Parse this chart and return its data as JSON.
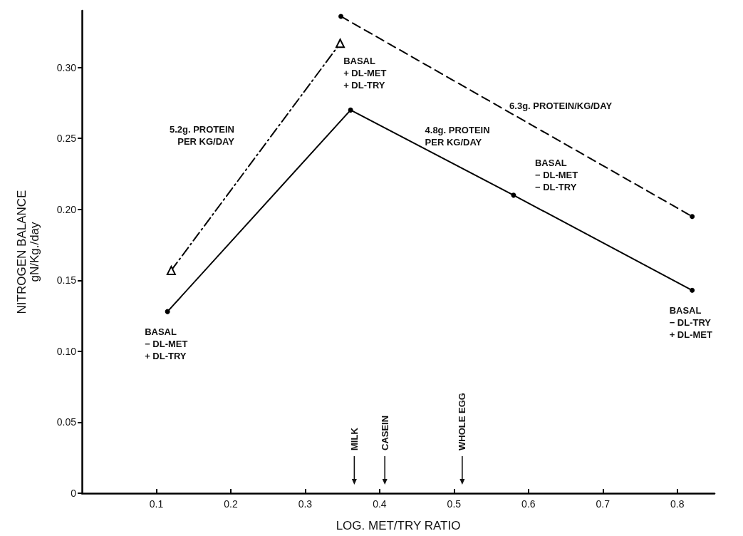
{
  "chart_data": {
    "type": "line",
    "xlabel": "LOG. MET/TRY RATIO",
    "ylabel": "NITROGEN BALANCE\ngN/Kg./day",
    "xlim": [
      0,
      0.85
    ],
    "xticks": [
      0.1,
      0.2,
      0.3,
      0.4,
      0.5,
      0.6,
      0.7,
      0.8
    ],
    "ylim": [
      0,
      0.34
    ],
    "yticks": [
      0,
      0.05,
      {
        "value": 0.1,
        "label": "0.10"
      },
      0.15,
      {
        "value": 0.2,
        "label": "0.20"
      },
      0.25,
      {
        "value": 0.3,
        "label": "0.30"
      }
    ],
    "grid": false,
    "legend": false,
    "series": [
      {
        "name": "4.8g. PROTEIN\nPER KG/DAY",
        "color": "#000000",
        "x": [
          0.115,
          0.361,
          0.58,
          0.82
        ],
        "values": [
          0.128,
          0.27,
          0.21,
          0.143
        ],
        "marker": "circle",
        "line_style": "solid"
      },
      {
        "name": "5.2g. PROTEIN\nPER KG/DAY",
        "color": "#000000",
        "x": [
          0.12,
          0.347
        ],
        "values": [
          0.157,
          0.317
        ],
        "marker": "triangle",
        "line_style": "dashdot"
      },
      {
        "name": "6.3g. PROTEIN/KG/DAY",
        "color": "#000000",
        "x": [
          0.348,
          0.82
        ],
        "values": [
          0.336,
          0.195
        ],
        "marker": "circle",
        "line_style": "dashed"
      }
    ],
    "annotations": [
      {
        "text": "BASAL\n− DL-MET\n+ DL-TRY",
        "x": 0.115,
        "y": 0.128
      },
      {
        "text": "BASAL\n+ DL-MET\n+ DL-TRY",
        "x": 0.361,
        "y": 0.27
      },
      {
        "text": "BASAL\n− DL-MET\n− DL-TRY",
        "x": 0.58,
        "y": 0.21
      },
      {
        "text": "BASAL\n− DL-TRY\n+ DL-MET",
        "x": 0.82,
        "y": 0.143
      }
    ],
    "ref_lines": [
      {
        "axis": "x",
        "value": 0.366,
        "label": "MILK"
      },
      {
        "axis": "x",
        "value": 0.407,
        "label": "CASEIN"
      },
      {
        "axis": "x",
        "value": 0.511,
        "label": "WHOLE EGG"
      }
    ]
  }
}
